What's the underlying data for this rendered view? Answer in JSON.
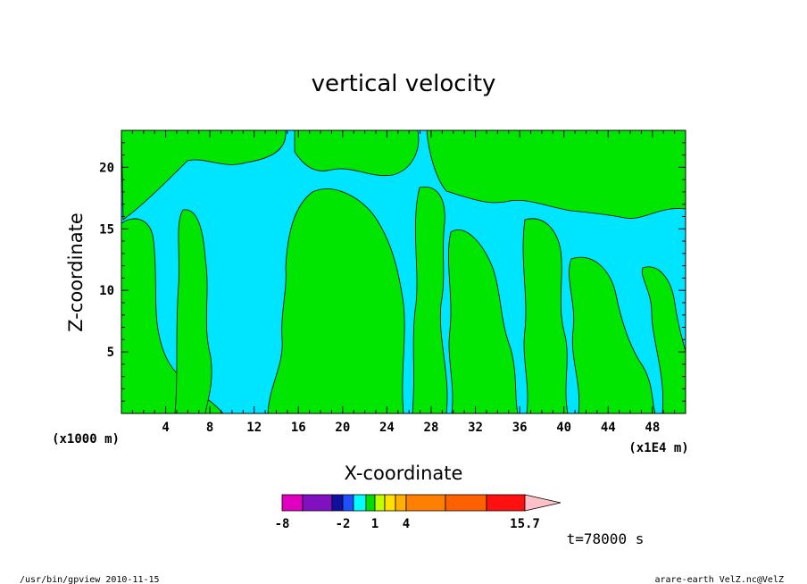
{
  "chart_data": {
    "type": "heatmap",
    "title": "vertical velocity",
    "xlabel": "X-coordinate",
    "ylabel": "Z-coordinate",
    "x_unit_left": "(x1000 m)",
    "x_unit_right": "(x1E4 m)",
    "xlim": [
      0,
      51
    ],
    "ylim": [
      0,
      23
    ],
    "x_ticks": [
      4,
      8,
      12,
      16,
      20,
      24,
      28,
      32,
      36,
      40,
      44,
      48
    ],
    "y_ticks": [
      5,
      10,
      15,
      20
    ],
    "colorbar": {
      "levels": [
        -8,
        -6,
        -4,
        -3,
        -2,
        -1,
        0,
        1,
        2,
        3,
        4,
        7,
        10,
        13,
        15.7
      ],
      "colors": [
        "#e000c0",
        "#8010c0",
        "#1010a0",
        "#1e50ff",
        "#00ffff",
        "#00e000",
        "#c0ff00",
        "#ffe000",
        "#ffb000",
        "#ff8000",
        "#ff6000",
        "#ff1010",
        "#ff7a7a",
        "#ffc0c8"
      ],
      "tick_labels": [
        "-8",
        "-2",
        "1",
        "4",
        "15.7"
      ]
    },
    "fill_colors": {
      "negative": "#00e5ff",
      "positive": "#00e600"
    }
  },
  "annotations": {
    "time": "t=78000 s",
    "footer_left": "/usr/bin/gpview  2010-11-15",
    "footer_right": "arare-earth_VelZ.nc@VelZ"
  }
}
